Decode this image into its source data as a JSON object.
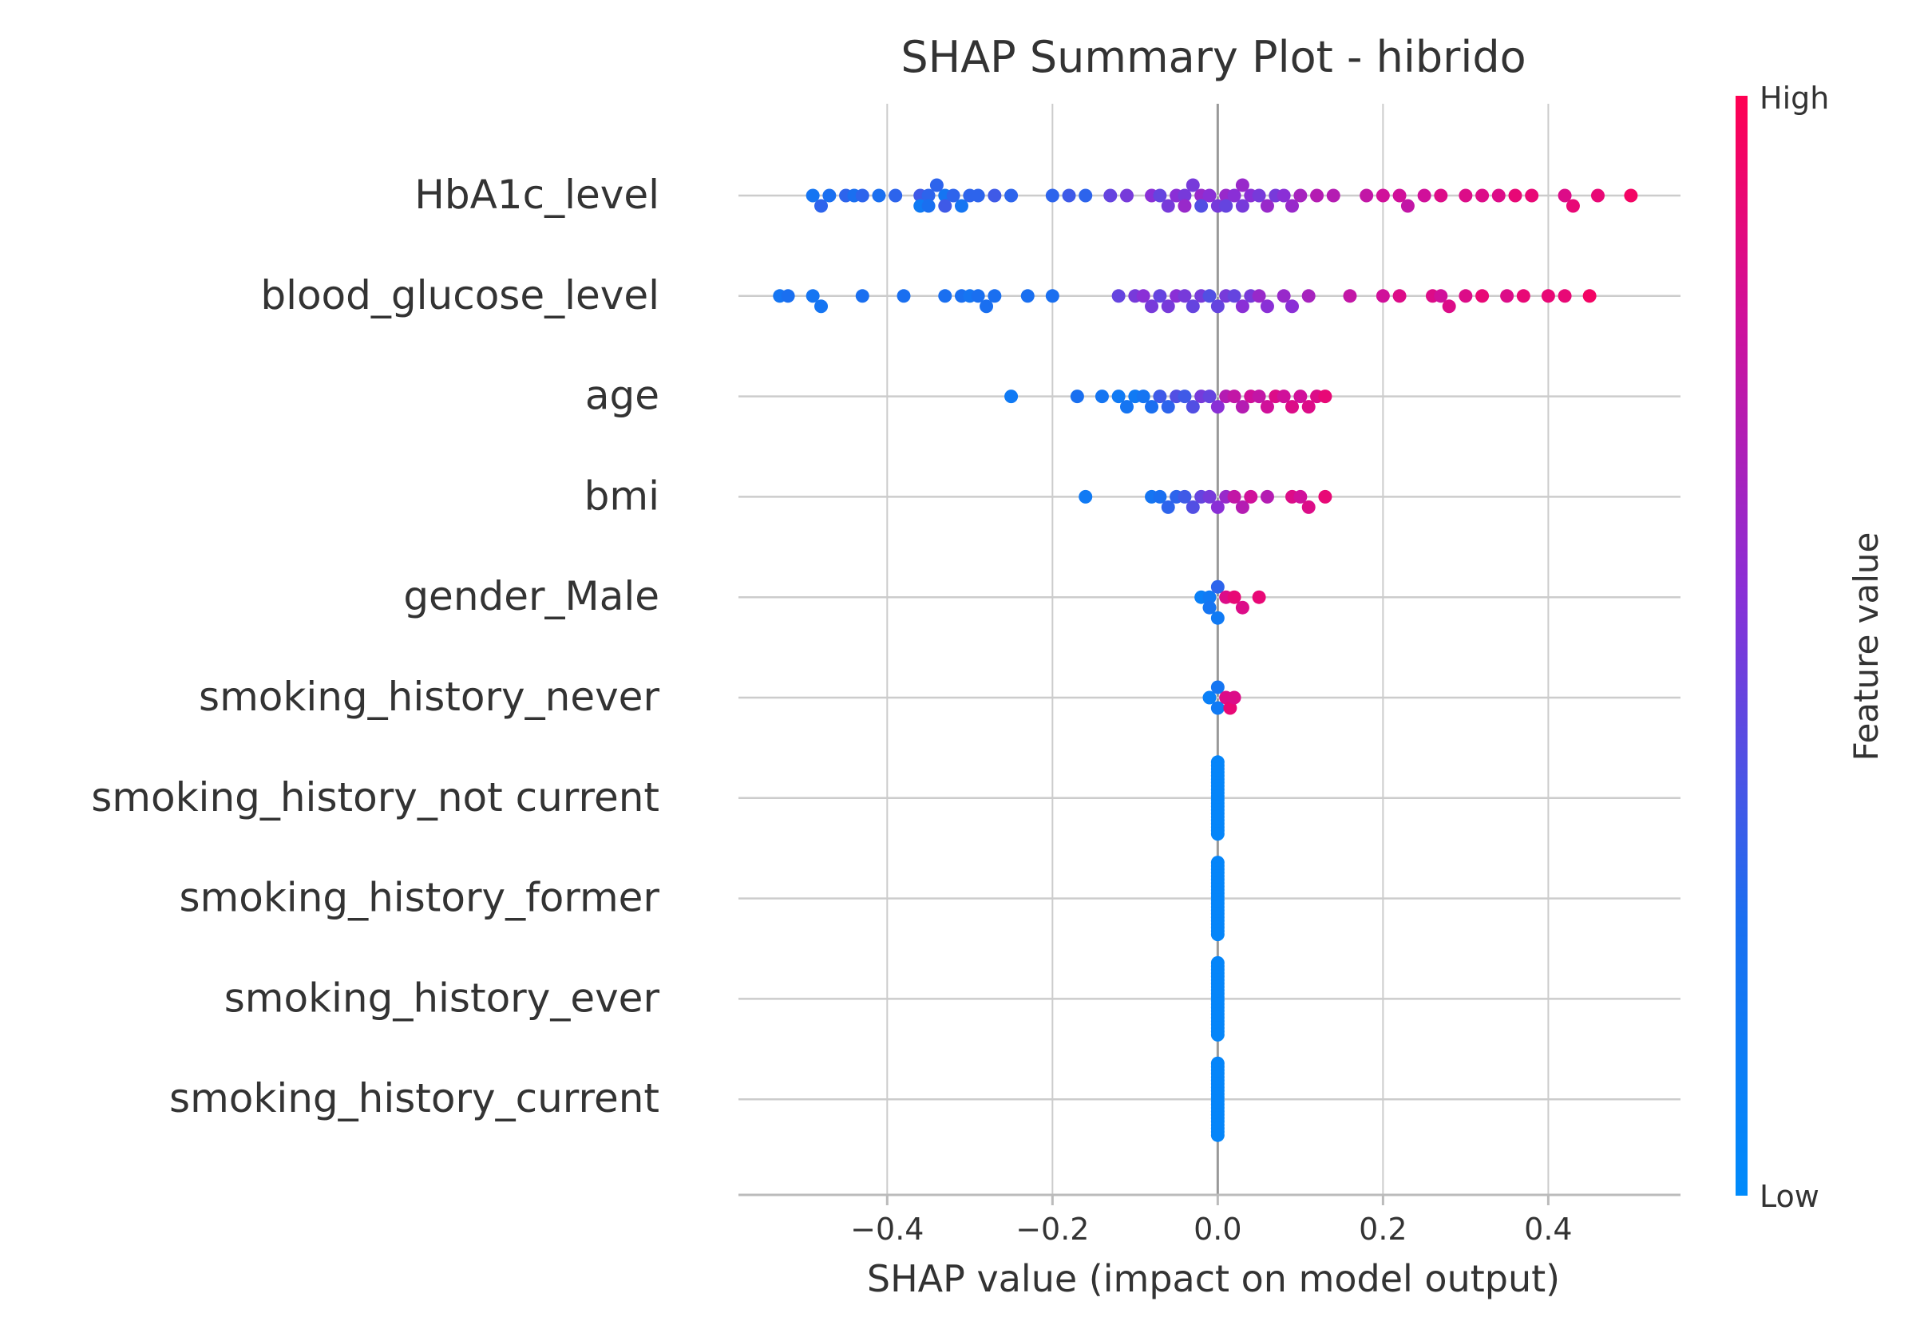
{
  "chart_data": {
    "type": "scatter",
    "subtype": "shap_beeswarm",
    "title": "SHAP Summary Plot - hibrido",
    "xlabel": "SHAP value (impact on model output)",
    "xlim": [
      -0.58,
      0.56
    ],
    "xticks": [
      -0.4,
      -0.2,
      0.0,
      0.2,
      0.4
    ],
    "xtick_labels": [
      "−0.4",
      "−0.2",
      "0.0",
      "0.2",
      "0.4"
    ],
    "colorbar": {
      "label": "Feature value",
      "high_label": "High",
      "low_label": "Low",
      "low_color": "#008bfb",
      "high_color": "#ff0052",
      "mid_color": "#c612a4"
    },
    "features": [
      {
        "name": "HbA1c_level",
        "points": [
          [
            -0.49,
            0.2
          ],
          [
            -0.48,
            0.3
          ],
          [
            -0.47,
            0.25
          ],
          [
            -0.45,
            0.3
          ],
          [
            -0.44,
            0.25
          ],
          [
            -0.43,
            0.3
          ],
          [
            -0.41,
            0.25
          ],
          [
            -0.39,
            0.3
          ],
          [
            -0.36,
            0.35
          ],
          [
            -0.36,
            0.15
          ],
          [
            -0.35,
            0.3
          ],
          [
            -0.35,
            0.25
          ],
          [
            -0.34,
            0.3
          ],
          [
            -0.33,
            0.2
          ],
          [
            -0.33,
            0.35
          ],
          [
            -0.32,
            0.3
          ],
          [
            -0.31,
            0.2
          ],
          [
            -0.3,
            0.3
          ],
          [
            -0.29,
            0.3
          ],
          [
            -0.27,
            0.35
          ],
          [
            -0.25,
            0.3
          ],
          [
            -0.2,
            0.3
          ],
          [
            -0.18,
            0.35
          ],
          [
            -0.16,
            0.3
          ],
          [
            -0.13,
            0.45
          ],
          [
            -0.11,
            0.5
          ],
          [
            -0.08,
            0.55
          ],
          [
            -0.07,
            0.45
          ],
          [
            -0.06,
            0.5
          ],
          [
            -0.05,
            0.55
          ],
          [
            -0.04,
            0.5
          ],
          [
            -0.04,
            0.6
          ],
          [
            -0.03,
            0.5
          ],
          [
            -0.02,
            0.6
          ],
          [
            -0.02,
            0.4
          ],
          [
            -0.01,
            0.55
          ],
          [
            0.0,
            0.5
          ],
          [
            0.01,
            0.6
          ],
          [
            0.01,
            0.45
          ],
          [
            0.02,
            0.55
          ],
          [
            0.03,
            0.5
          ],
          [
            0.03,
            0.6
          ],
          [
            0.04,
            0.55
          ],
          [
            0.05,
            0.5
          ],
          [
            0.06,
            0.6
          ],
          [
            0.07,
            0.5
          ],
          [
            0.08,
            0.55
          ],
          [
            0.09,
            0.6
          ],
          [
            0.1,
            0.65
          ],
          [
            0.12,
            0.7
          ],
          [
            0.14,
            0.7
          ],
          [
            0.18,
            0.75
          ],
          [
            0.2,
            0.8
          ],
          [
            0.22,
            0.8
          ],
          [
            0.23,
            0.75
          ],
          [
            0.25,
            0.8
          ],
          [
            0.27,
            0.85
          ],
          [
            0.3,
            0.85
          ],
          [
            0.32,
            0.85
          ],
          [
            0.34,
            0.85
          ],
          [
            0.36,
            0.9
          ],
          [
            0.38,
            0.9
          ],
          [
            0.42,
            0.85
          ],
          [
            0.43,
            0.9
          ],
          [
            0.46,
            0.9
          ],
          [
            0.5,
            0.95
          ]
        ]
      },
      {
        "name": "blood_glucose_level",
        "points": [
          [
            -0.53,
            0.2
          ],
          [
            -0.52,
            0.25
          ],
          [
            -0.49,
            0.2
          ],
          [
            -0.48,
            0.2
          ],
          [
            -0.43,
            0.25
          ],
          [
            -0.38,
            0.25
          ],
          [
            -0.33,
            0.25
          ],
          [
            -0.31,
            0.25
          ],
          [
            -0.3,
            0.2
          ],
          [
            -0.29,
            0.25
          ],
          [
            -0.28,
            0.25
          ],
          [
            -0.27,
            0.25
          ],
          [
            -0.23,
            0.25
          ],
          [
            -0.2,
            0.25
          ],
          [
            -0.12,
            0.45
          ],
          [
            -0.1,
            0.5
          ],
          [
            -0.09,
            0.55
          ],
          [
            -0.08,
            0.5
          ],
          [
            -0.07,
            0.45
          ],
          [
            -0.06,
            0.5
          ],
          [
            -0.05,
            0.55
          ],
          [
            -0.04,
            0.5
          ],
          [
            -0.03,
            0.45
          ],
          [
            -0.02,
            0.5
          ],
          [
            -0.01,
            0.4
          ],
          [
            0.0,
            0.45
          ],
          [
            0.01,
            0.5
          ],
          [
            0.02,
            0.45
          ],
          [
            0.03,
            0.55
          ],
          [
            0.04,
            0.5
          ],
          [
            0.05,
            0.6
          ],
          [
            0.06,
            0.55
          ],
          [
            0.08,
            0.6
          ],
          [
            0.09,
            0.55
          ],
          [
            0.11,
            0.65
          ],
          [
            0.16,
            0.75
          ],
          [
            0.2,
            0.8
          ],
          [
            0.22,
            0.85
          ],
          [
            0.26,
            0.85
          ],
          [
            0.27,
            0.8
          ],
          [
            0.28,
            0.85
          ],
          [
            0.3,
            0.85
          ],
          [
            0.32,
            0.9
          ],
          [
            0.35,
            0.85
          ],
          [
            0.37,
            0.9
          ],
          [
            0.4,
            0.9
          ],
          [
            0.42,
            0.9
          ],
          [
            0.45,
            0.95
          ]
        ]
      },
      {
        "name": "age",
        "points": [
          [
            -0.25,
            0.15
          ],
          [
            -0.17,
            0.25
          ],
          [
            -0.14,
            0.2
          ],
          [
            -0.12,
            0.15
          ],
          [
            -0.11,
            0.2
          ],
          [
            -0.1,
            0.15
          ],
          [
            -0.09,
            0.2
          ],
          [
            -0.08,
            0.25
          ],
          [
            -0.07,
            0.35
          ],
          [
            -0.06,
            0.3
          ],
          [
            -0.05,
            0.4
          ],
          [
            -0.04,
            0.35
          ],
          [
            -0.03,
            0.4
          ],
          [
            -0.02,
            0.5
          ],
          [
            -0.01,
            0.45
          ],
          [
            0.0,
            0.55
          ],
          [
            0.01,
            0.7
          ],
          [
            0.02,
            0.75
          ],
          [
            0.03,
            0.7
          ],
          [
            0.04,
            0.8
          ],
          [
            0.05,
            0.75
          ],
          [
            0.06,
            0.8
          ],
          [
            0.07,
            0.85
          ],
          [
            0.08,
            0.8
          ],
          [
            0.09,
            0.85
          ],
          [
            0.1,
            0.8
          ],
          [
            0.11,
            0.85
          ],
          [
            0.12,
            0.85
          ],
          [
            0.13,
            0.9
          ]
        ]
      },
      {
        "name": "bmi",
        "points": [
          [
            -0.16,
            0.15
          ],
          [
            -0.08,
            0.2
          ],
          [
            -0.07,
            0.25
          ],
          [
            -0.06,
            0.3
          ],
          [
            -0.05,
            0.3
          ],
          [
            -0.04,
            0.35
          ],
          [
            -0.03,
            0.4
          ],
          [
            -0.02,
            0.45
          ],
          [
            -0.01,
            0.5
          ],
          [
            0.0,
            0.55
          ],
          [
            0.01,
            0.6
          ],
          [
            0.02,
            0.75
          ],
          [
            0.03,
            0.7
          ],
          [
            0.04,
            0.8
          ],
          [
            0.06,
            0.7
          ],
          [
            0.09,
            0.85
          ],
          [
            0.1,
            0.8
          ],
          [
            0.11,
            0.85
          ],
          [
            0.13,
            0.9
          ]
        ]
      },
      {
        "name": "gender_Male",
        "points": [
          [
            -0.02,
            0.1
          ],
          [
            -0.01,
            0.15
          ],
          [
            -0.01,
            0.2
          ],
          [
            0.0,
            0.3
          ],
          [
            0.0,
            0.15
          ],
          [
            0.01,
            0.85
          ],
          [
            0.02,
            0.9
          ],
          [
            0.03,
            0.85
          ],
          [
            0.05,
            0.9
          ]
        ]
      },
      {
        "name": "smoking_history_never",
        "points": [
          [
            -0.01,
            0.1
          ],
          [
            0.0,
            0.15
          ],
          [
            0.0,
            0.2
          ],
          [
            0.01,
            0.85
          ],
          [
            0.015,
            0.9
          ],
          [
            0.02,
            0.85
          ]
        ]
      },
      {
        "name": "smoking_history_not current",
        "points": [
          [
            0.0,
            0.05
          ]
        ]
      },
      {
        "name": "smoking_history_former",
        "points": [
          [
            0.0,
            0.05
          ]
        ]
      },
      {
        "name": "smoking_history_ever",
        "points": [
          [
            0.0,
            0.05
          ]
        ]
      },
      {
        "name": "smoking_history_current",
        "points": [
          [
            0.0,
            0.05
          ]
        ]
      }
    ]
  }
}
